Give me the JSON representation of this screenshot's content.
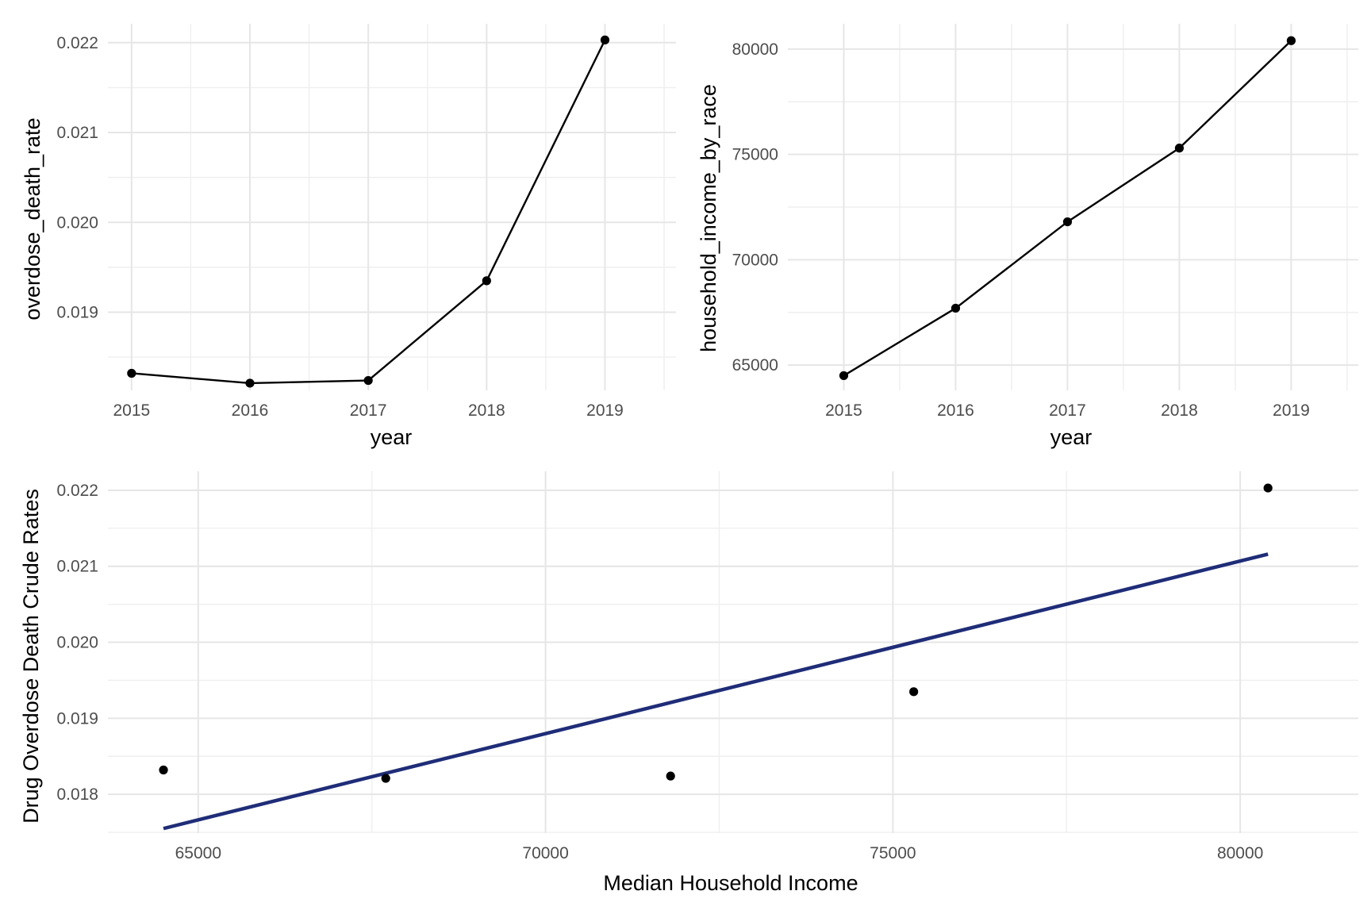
{
  "colors": {
    "point": "#000000",
    "line": "#000000",
    "fit_line": "#1f2d78",
    "grid": "#e6e6e6",
    "tick_text": "#4d4d4d"
  },
  "chart_data": [
    {
      "type": "line",
      "xlabel": "year",
      "ylabel": "overdose_death_rate",
      "x": [
        2015,
        2016,
        2017,
        2018,
        2019
      ],
      "y": [
        0.01832,
        0.01821,
        0.01824,
        0.01935,
        0.02203
      ],
      "xlim": [
        2014.8,
        2019.6
      ],
      "ylim": [
        0.01813,
        0.02221
      ],
      "xticks": [
        2015,
        2016,
        2017,
        2018,
        2019
      ],
      "xtick_labels": [
        "2015",
        "2016",
        "2017",
        "2018",
        "2019"
      ],
      "yticks": [
        0.019,
        0.02,
        0.021,
        0.022
      ],
      "ytick_labels": [
        "0.019",
        "0.020",
        "0.021",
        "0.022"
      ],
      "markers": true,
      "grid": true
    },
    {
      "type": "line",
      "xlabel": "year",
      "ylabel": "household_income_by_race",
      "x": [
        2015,
        2016,
        2017,
        2018,
        2019
      ],
      "y": [
        64500,
        67700,
        71800,
        75300,
        80400
      ],
      "xlim": [
        2014.5,
        2019.6
      ],
      "ylim": [
        63800,
        81200
      ],
      "xticks": [
        2015,
        2016,
        2017,
        2018,
        2019
      ],
      "xtick_labels": [
        "2015",
        "2016",
        "2017",
        "2018",
        "2019"
      ],
      "yticks": [
        65000,
        70000,
        75000,
        80000
      ],
      "ytick_labels": [
        "65000",
        "70000",
        "75000",
        "80000"
      ],
      "markers": true,
      "grid": true
    },
    {
      "type": "scatter",
      "xlabel": "Median Household Income",
      "ylabel": "Drug Overdose Death Crude Rates",
      "x": [
        64500,
        67700,
        71800,
        75300,
        80400
      ],
      "y": [
        0.01832,
        0.01821,
        0.01824,
        0.01935,
        0.02203
      ],
      "fit_line": {
        "x": [
          64500,
          80400
        ],
        "y": [
          0.01755,
          0.02116
        ]
      },
      "xlim": [
        63700,
        81700
      ],
      "ylim": [
        0.01749,
        0.02225
      ],
      "xticks": [
        65000,
        70000,
        75000,
        80000
      ],
      "xtick_labels": [
        "65000",
        "70000",
        "75000",
        "80000"
      ],
      "yticks": [
        0.018,
        0.019,
        0.02,
        0.021,
        0.022
      ],
      "ytick_labels": [
        "0.018",
        "0.019",
        "0.020",
        "0.021",
        "0.022"
      ],
      "grid": true
    }
  ]
}
